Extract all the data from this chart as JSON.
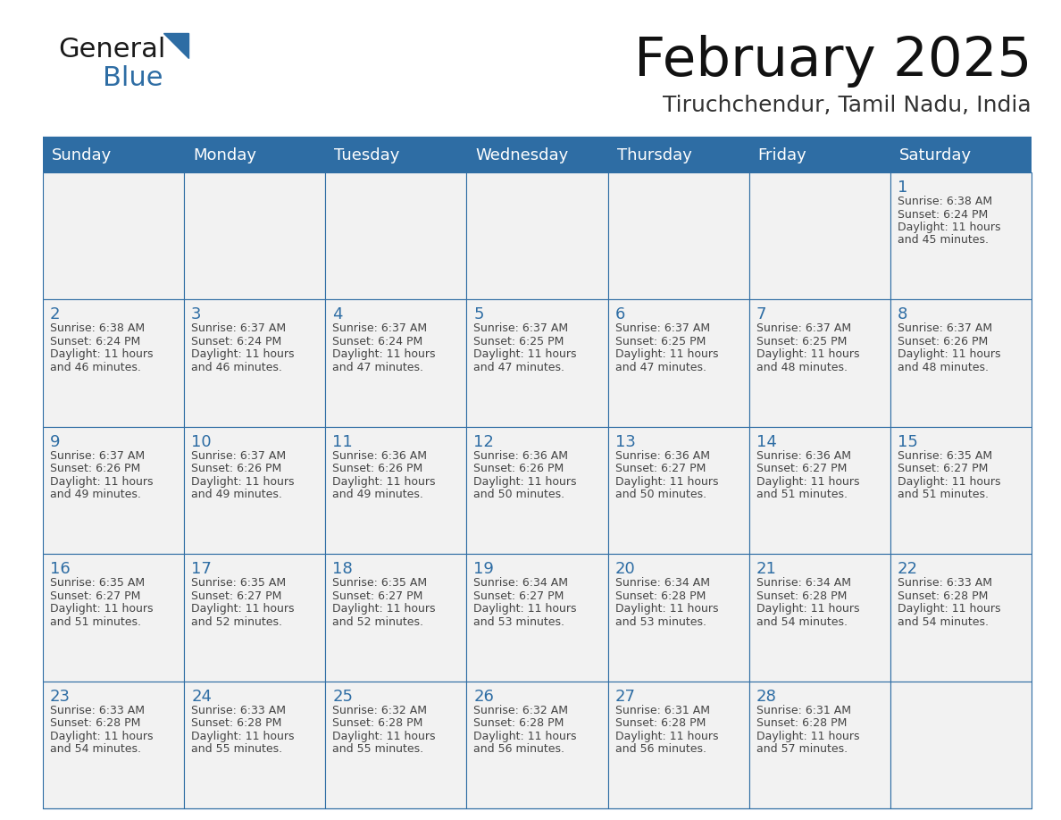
{
  "title": "February 2025",
  "subtitle": "Tiruchchendur, Tamil Nadu, India",
  "header_bg": "#2E6DA4",
  "header_text_color": "#FFFFFF",
  "cell_bg": "#F2F2F2",
  "day_number_color": "#2E6DA4",
  "info_text_color": "#444444",
  "grid_line_color": "#2E6DA4",
  "days_of_week": [
    "Sunday",
    "Monday",
    "Tuesday",
    "Wednesday",
    "Thursday",
    "Friday",
    "Saturday"
  ],
  "weeks": [
    [
      {
        "day": null,
        "sunrise": null,
        "sunset": null,
        "daylight": null
      },
      {
        "day": null,
        "sunrise": null,
        "sunset": null,
        "daylight": null
      },
      {
        "day": null,
        "sunrise": null,
        "sunset": null,
        "daylight": null
      },
      {
        "day": null,
        "sunrise": null,
        "sunset": null,
        "daylight": null
      },
      {
        "day": null,
        "sunrise": null,
        "sunset": null,
        "daylight": null
      },
      {
        "day": null,
        "sunrise": null,
        "sunset": null,
        "daylight": null
      },
      {
        "day": 1,
        "sunrise": "6:38 AM",
        "sunset": "6:24 PM",
        "daylight": "11 hours\nand 45 minutes."
      }
    ],
    [
      {
        "day": 2,
        "sunrise": "6:38 AM",
        "sunset": "6:24 PM",
        "daylight": "11 hours\nand 46 minutes."
      },
      {
        "day": 3,
        "sunrise": "6:37 AM",
        "sunset": "6:24 PM",
        "daylight": "11 hours\nand 46 minutes."
      },
      {
        "day": 4,
        "sunrise": "6:37 AM",
        "sunset": "6:24 PM",
        "daylight": "11 hours\nand 47 minutes."
      },
      {
        "day": 5,
        "sunrise": "6:37 AM",
        "sunset": "6:25 PM",
        "daylight": "11 hours\nand 47 minutes."
      },
      {
        "day": 6,
        "sunrise": "6:37 AM",
        "sunset": "6:25 PM",
        "daylight": "11 hours\nand 47 minutes."
      },
      {
        "day": 7,
        "sunrise": "6:37 AM",
        "sunset": "6:25 PM",
        "daylight": "11 hours\nand 48 minutes."
      },
      {
        "day": 8,
        "sunrise": "6:37 AM",
        "sunset": "6:26 PM",
        "daylight": "11 hours\nand 48 minutes."
      }
    ],
    [
      {
        "day": 9,
        "sunrise": "6:37 AM",
        "sunset": "6:26 PM",
        "daylight": "11 hours\nand 49 minutes."
      },
      {
        "day": 10,
        "sunrise": "6:37 AM",
        "sunset": "6:26 PM",
        "daylight": "11 hours\nand 49 minutes."
      },
      {
        "day": 11,
        "sunrise": "6:36 AM",
        "sunset": "6:26 PM",
        "daylight": "11 hours\nand 49 minutes."
      },
      {
        "day": 12,
        "sunrise": "6:36 AM",
        "sunset": "6:26 PM",
        "daylight": "11 hours\nand 50 minutes."
      },
      {
        "day": 13,
        "sunrise": "6:36 AM",
        "sunset": "6:27 PM",
        "daylight": "11 hours\nand 50 minutes."
      },
      {
        "day": 14,
        "sunrise": "6:36 AM",
        "sunset": "6:27 PM",
        "daylight": "11 hours\nand 51 minutes."
      },
      {
        "day": 15,
        "sunrise": "6:35 AM",
        "sunset": "6:27 PM",
        "daylight": "11 hours\nand 51 minutes."
      }
    ],
    [
      {
        "day": 16,
        "sunrise": "6:35 AM",
        "sunset": "6:27 PM",
        "daylight": "11 hours\nand 51 minutes."
      },
      {
        "day": 17,
        "sunrise": "6:35 AM",
        "sunset": "6:27 PM",
        "daylight": "11 hours\nand 52 minutes."
      },
      {
        "day": 18,
        "sunrise": "6:35 AM",
        "sunset": "6:27 PM",
        "daylight": "11 hours\nand 52 minutes."
      },
      {
        "day": 19,
        "sunrise": "6:34 AM",
        "sunset": "6:27 PM",
        "daylight": "11 hours\nand 53 minutes."
      },
      {
        "day": 20,
        "sunrise": "6:34 AM",
        "sunset": "6:28 PM",
        "daylight": "11 hours\nand 53 minutes."
      },
      {
        "day": 21,
        "sunrise": "6:34 AM",
        "sunset": "6:28 PM",
        "daylight": "11 hours\nand 54 minutes."
      },
      {
        "day": 22,
        "sunrise": "6:33 AM",
        "sunset": "6:28 PM",
        "daylight": "11 hours\nand 54 minutes."
      }
    ],
    [
      {
        "day": 23,
        "sunrise": "6:33 AM",
        "sunset": "6:28 PM",
        "daylight": "11 hours\nand 54 minutes."
      },
      {
        "day": 24,
        "sunrise": "6:33 AM",
        "sunset": "6:28 PM",
        "daylight": "11 hours\nand 55 minutes."
      },
      {
        "day": 25,
        "sunrise": "6:32 AM",
        "sunset": "6:28 PM",
        "daylight": "11 hours\nand 55 minutes."
      },
      {
        "day": 26,
        "sunrise": "6:32 AM",
        "sunset": "6:28 PM",
        "daylight": "11 hours\nand 56 minutes."
      },
      {
        "day": 27,
        "sunrise": "6:31 AM",
        "sunset": "6:28 PM",
        "daylight": "11 hours\nand 56 minutes."
      },
      {
        "day": 28,
        "sunrise": "6:31 AM",
        "sunset": "6:28 PM",
        "daylight": "11 hours\nand 57 minutes."
      },
      {
        "day": null,
        "sunrise": null,
        "sunset": null,
        "daylight": null
      }
    ]
  ]
}
